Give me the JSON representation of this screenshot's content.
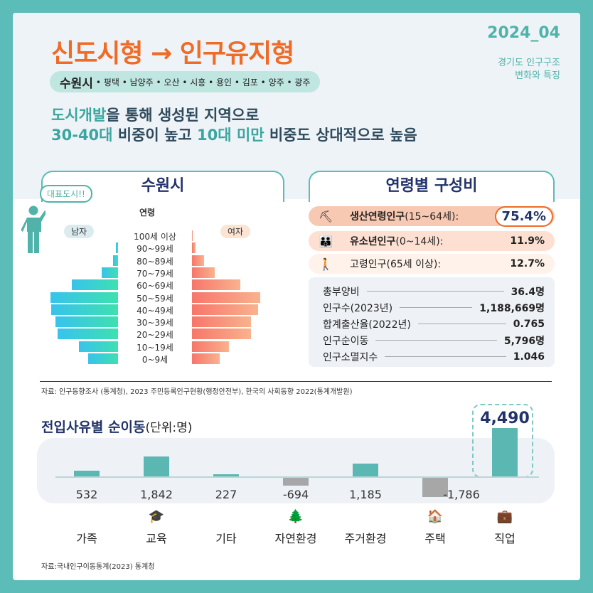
{
  "header": {
    "title": "신도시형 → 인구유지형",
    "date": "2024_04",
    "subtitle_line1": "경기도 인구구조",
    "subtitle_line2": "변화와 특징",
    "main_city": "수원시",
    "other_cities": "• 평택 • 남양주 • 오산 • 시흥 • 용인 • 김포 • 양주 • 광주",
    "desc_line1_hl": "도시개발",
    "desc_line1_rest": "을 통해 생성된 지역으로",
    "desc_line2_hl1": "30-40대",
    "desc_line2_mid": " 비중이 높고 ",
    "desc_line2_hl2": "10대 미만",
    "desc_line2_rest": " 비중도 상대적으로 높음"
  },
  "pyramid": {
    "title": "수원시",
    "badge": "대표도시!!",
    "axis_label": "연령",
    "male_label": "남자",
    "female_label": "여자"
  },
  "composition": {
    "title": "연령별 구성비",
    "rows": [
      {
        "label_bold": "생산연령인구",
        "label_rest": "(15~64세):",
        "value": "75.4%"
      },
      {
        "label_bold": "유소년인구",
        "label_rest": "(0~14세):",
        "value": "11.9%"
      },
      {
        "label_bold": "",
        "label_rest": "고령인구(65세 이상):",
        "value": "12.7%"
      }
    ],
    "stats": [
      {
        "label": "총부양비",
        "value": "36.4명"
      },
      {
        "label": "인구수(2023년)",
        "value": "1,188,669명"
      },
      {
        "label": "합계출산율(2022년)",
        "value": "0.765"
      },
      {
        "label": "인구순이동",
        "value": "5,796명"
      },
      {
        "label": "인구소멸지수",
        "value": "1.046"
      }
    ]
  },
  "source1": "자료: 인구동향조사 (통계청), 2023 주민등록인구현황(행정안전부), 한국의 사회동향 2022(통계개발원)",
  "migration": {
    "title": "전입사유별 순이동",
    "unit": "(단위:명)"
  },
  "source2": "자료:국내인구이동통계(2023) 통계청",
  "chart_data": [
    {
      "type": "bar",
      "title": "수원시",
      "xlabel": "",
      "ylabel": "연령",
      "categories": [
        "100세 이상",
        "90~99세",
        "80~89세",
        "70~79세",
        "60~69세",
        "50~59세",
        "40~49세",
        "30~39세",
        "20~29세",
        "10~19세",
        "0~9세"
      ],
      "series": [
        {
          "name": "남자",
          "values": [
            0,
            0.3,
            0.7,
            2.3,
            6.4,
            9.3,
            9.2,
            8.6,
            8.3,
            5.4,
            4.1
          ]
        },
        {
          "name": "여자",
          "values": [
            0.1,
            0.5,
            1.7,
            3.1,
            6.7,
            9.4,
            9.1,
            8.1,
            8.1,
            5.1,
            3.8
          ]
        }
      ]
    },
    {
      "type": "bar",
      "title": "전입사유별 순이동",
      "categories": [
        "가족",
        "교육",
        "기타",
        "자연환경",
        "주거환경",
        "주택",
        "직업"
      ],
      "values": [
        532,
        1842,
        227,
        -694,
        1185,
        -1786,
        4490
      ],
      "value_labels": [
        "532",
        "1,842",
        "227",
        "-694",
        "1,185",
        "-1,786",
        "4,490"
      ]
    }
  ],
  "colors": {
    "accent_orange": "#ef6b26",
    "accent_teal": "#5ab7b1",
    "navy": "#22336b"
  }
}
